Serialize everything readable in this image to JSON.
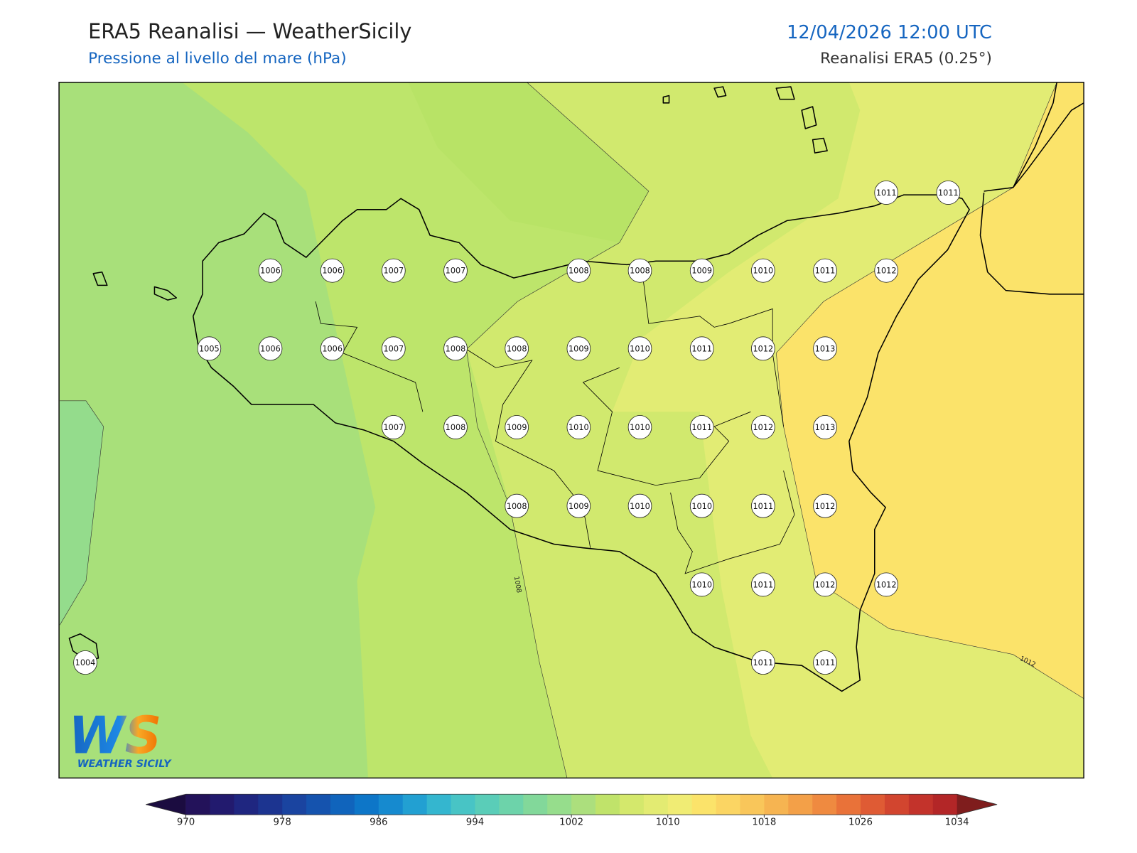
{
  "header": {
    "title": "ERA5 Reanalisi — WeatherSicily",
    "subtitle": "Pressione al livello del mare (hPa)",
    "datetime": "12/04/2026 12:00 UTC",
    "source": "Reanalisi ERA5 (0.25°)"
  },
  "map": {
    "stations": [
      1011,
      1011,
      1006,
      1006,
      1007,
      1007,
      1008,
      1008,
      1009,
      1010,
      1011,
      1012,
      1005,
      1006,
      1006,
      1007,
      1008,
      1008,
      1009,
      1010,
      1011,
      1012,
      1013,
      1007,
      1008,
      1009,
      1010,
      1010,
      1011,
      1012,
      1013,
      1008,
      1009,
      1010,
      1010,
      1011,
      1012,
      1010,
      1011,
      1012,
      1012,
      1004,
      1011,
      1011
    ],
    "contours": [
      1008,
      1012
    ]
  },
  "colorbar": {
    "ticks": [
      970,
      978,
      986,
      994,
      1002,
      1010,
      1018,
      1026,
      1034
    ],
    "colors": [
      "#23125a",
      "#221a6e",
      "#1f2680",
      "#1c3490",
      "#1a44a0",
      "#1553ae",
      "#1064bc",
      "#0d76c8",
      "#168acf",
      "#22a0d2",
      "#34b6cf",
      "#48c4c5",
      "#5acdb8",
      "#6dd3aa",
      "#82d89a",
      "#96dd8c",
      "#acdf7d",
      "#c0e36a",
      "#d4e86c",
      "#e3eb72",
      "#f0ec74",
      "#fbe36a",
      "#fbd563",
      "#f9c65a",
      "#f6b451",
      "#f3a048",
      "#ef8a40",
      "#e97239",
      "#df5b34",
      "#d2452f",
      "#c3332b",
      "#b32627"
    ],
    "extend_low": "#1b0c40",
    "extend_high": "#7f1d1d"
  },
  "logo": {
    "mark": "WS",
    "text": "WEATHER SICILY"
  }
}
